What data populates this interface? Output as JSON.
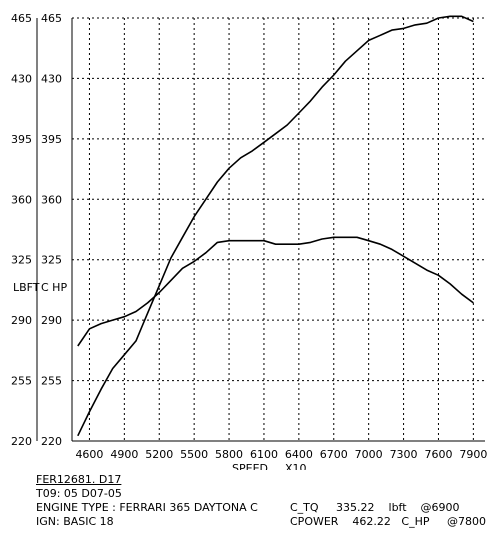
{
  "chart_data": {
    "type": "line",
    "x_ticks": [
      4600,
      4900,
      5200,
      5500,
      5800,
      6100,
      6400,
      6700,
      7000,
      7300,
      7600,
      7900
    ],
    "xlim": [
      4450,
      8000
    ],
    "ylim": [
      220,
      465
    ],
    "y_ticks_left": [
      220,
      255,
      290,
      325,
      360,
      395,
      430,
      465
    ],
    "y_ticks_right": [
      220,
      255,
      290,
      325,
      360,
      395,
      430,
      465
    ],
    "ylabel_left": "LBFT",
    "ylabel_right": "C HP",
    "xlabel": "SPEED",
    "xlabel_scale": "X10",
    "grid": true,
    "series": [
      {
        "key": "torque",
        "color": "#000000",
        "points": [
          [
            4500,
            275
          ],
          [
            4600,
            285
          ],
          [
            4700,
            288
          ],
          [
            4800,
            290
          ],
          [
            4900,
            292
          ],
          [
            5000,
            295
          ],
          [
            5100,
            300
          ],
          [
            5200,
            306
          ],
          [
            5300,
            313
          ],
          [
            5400,
            320
          ],
          [
            5500,
            324
          ],
          [
            5600,
            329
          ],
          [
            5700,
            335
          ],
          [
            5800,
            336
          ],
          [
            5900,
            336
          ],
          [
            6000,
            336
          ],
          [
            6100,
            336
          ],
          [
            6200,
            334
          ],
          [
            6300,
            334
          ],
          [
            6400,
            334
          ],
          [
            6500,
            335
          ],
          [
            6600,
            337
          ],
          [
            6700,
            338
          ],
          [
            6800,
            338
          ],
          [
            6900,
            338
          ],
          [
            7000,
            336
          ],
          [
            7100,
            334
          ],
          [
            7200,
            331
          ],
          [
            7300,
            327
          ],
          [
            7400,
            323
          ],
          [
            7500,
            319
          ],
          [
            7600,
            316
          ],
          [
            7700,
            311
          ],
          [
            7800,
            305
          ],
          [
            7900,
            300
          ]
        ]
      },
      {
        "key": "power",
        "color": "#000000",
        "points": [
          [
            4500,
            223
          ],
          [
            4600,
            237
          ],
          [
            4700,
            250
          ],
          [
            4800,
            262
          ],
          [
            4900,
            270
          ],
          [
            5000,
            278
          ],
          [
            5050,
            286
          ],
          [
            5100,
            294
          ],
          [
            5200,
            310
          ],
          [
            5300,
            326
          ],
          [
            5400,
            338
          ],
          [
            5500,
            350
          ],
          [
            5600,
            360
          ],
          [
            5700,
            370
          ],
          [
            5800,
            378
          ],
          [
            5900,
            384
          ],
          [
            6000,
            388
          ],
          [
            6100,
            393
          ],
          [
            6200,
            398
          ],
          [
            6300,
            403
          ],
          [
            6400,
            410
          ],
          [
            6500,
            417
          ],
          [
            6600,
            425
          ],
          [
            6700,
            432
          ],
          [
            6800,
            440
          ],
          [
            6900,
            446
          ],
          [
            7000,
            452
          ],
          [
            7100,
            455
          ],
          [
            7200,
            458
          ],
          [
            7300,
            459
          ],
          [
            7400,
            461
          ],
          [
            7500,
            462
          ],
          [
            7600,
            465
          ],
          [
            7700,
            466
          ],
          [
            7800,
            466
          ],
          [
            7900,
            463
          ]
        ]
      }
    ]
  },
  "info": {
    "run_id": "FER12681. D17",
    "test_line": "T09: 05 D07-05",
    "engine_type": "ENGINE TYPE : FERRARI 365 DAYTONA C",
    "ign": "IGN: BASIC 18",
    "torque_summary": "C_TQ     335.22    lbft    @6900",
    "power_summary": "CPOWER    462.22   C_HP     @7800"
  }
}
